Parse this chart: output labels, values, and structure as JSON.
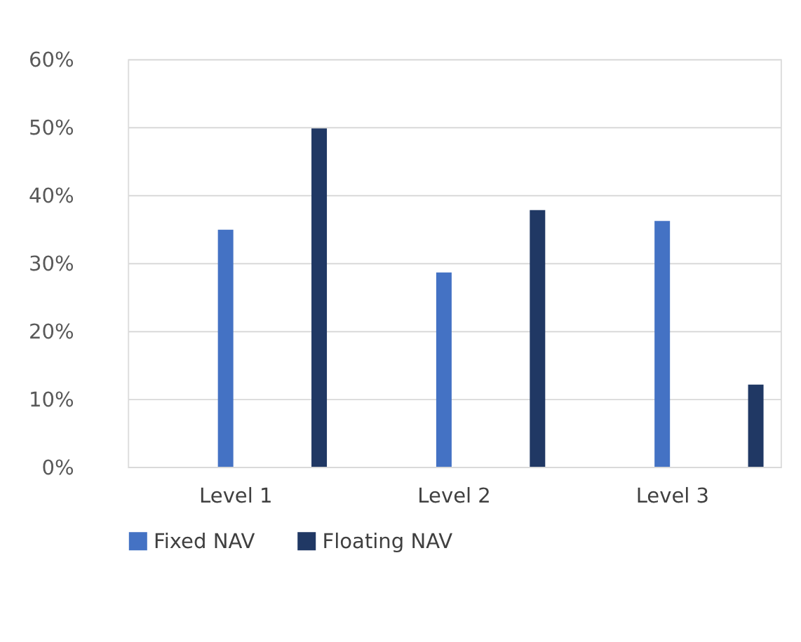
{
  "chart_data": {
    "type": "bar",
    "categories": [
      "Level 1",
      "Level 2",
      "Level 3"
    ],
    "series": [
      {
        "name": "Fixed NAV",
        "color": "#4472c4",
        "values": [
          34.9,
          28.6,
          36.2
        ]
      },
      {
        "name": "Floating NAV",
        "color": "#203864",
        "values": [
          49.8,
          37.8,
          12.1
        ]
      }
    ],
    "ylim": [
      0,
      60
    ],
    "yticks": [
      {
        "value": 0,
        "label": "0%"
      },
      {
        "value": 10,
        "label": "10%"
      },
      {
        "value": 20,
        "label": "20%"
      },
      {
        "value": 30,
        "label": "30%"
      },
      {
        "value": 40,
        "label": "40%"
      },
      {
        "value": 50,
        "label": "50%"
      },
      {
        "value": 60,
        "label": "60%"
      }
    ],
    "grid": "y",
    "legend": "bottom"
  }
}
